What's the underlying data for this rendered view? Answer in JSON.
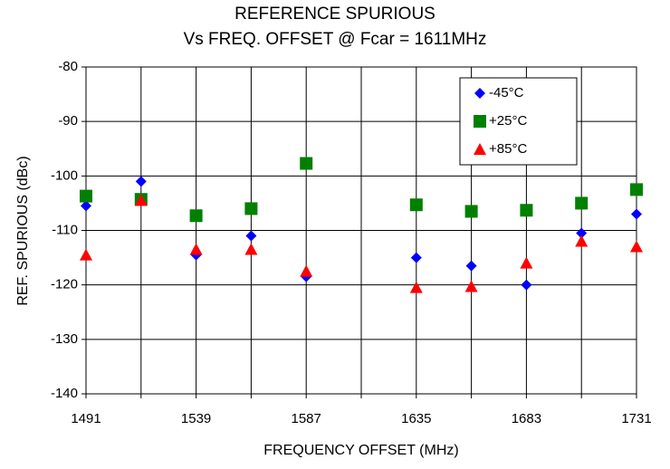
{
  "chart_data": {
    "type": "scatter",
    "title": "REFERENCE SPURIOUS",
    "subtitle": "Vs FREQ. OFFSET @ Fcar = 1611MHz",
    "x_label": "FREQUENCY OFFSET (MHz)",
    "y_label": "REF. SPURIOUS (dBc)",
    "x": [
      1491,
      1515,
      1539,
      1563,
      1587,
      1635,
      1659,
      1683,
      1707,
      1731
    ],
    "series": [
      {
        "name": "-45°C",
        "color": "#0000ff",
        "marker": "diamond",
        "values": [
          -105.5,
          -101,
          -114.5,
          -111,
          -118.5,
          -115,
          -116.5,
          -120,
          -110.5,
          -107
        ]
      },
      {
        "name": "+25°C",
        "color": "#008000",
        "marker": "square",
        "values": [
          -103.7,
          -104.3,
          -107.3,
          -106,
          -97.7,
          -105.3,
          -106.5,
          -106.3,
          -105,
          -102.5
        ]
      },
      {
        "name": "+85°C",
        "color": "#ff0000",
        "marker": "triangle",
        "values": [
          -114.5,
          -104.5,
          -113.5,
          -113.5,
          -117.5,
          -120.5,
          -120.3,
          -116,
          -112,
          -113
        ]
      }
    ],
    "xlim": [
      1491,
      1731
    ],
    "xticks": [
      1491,
      1539,
      1587,
      1635,
      1683,
      1731
    ],
    "xminor": [
      1515,
      1563,
      1611,
      1659,
      1707
    ],
    "ylim": [
      -140,
      -80
    ],
    "yticks": [
      -140,
      -130,
      -120,
      -110,
      -100,
      -90,
      -80
    ],
    "grid": true,
    "legend": "upper right"
  }
}
